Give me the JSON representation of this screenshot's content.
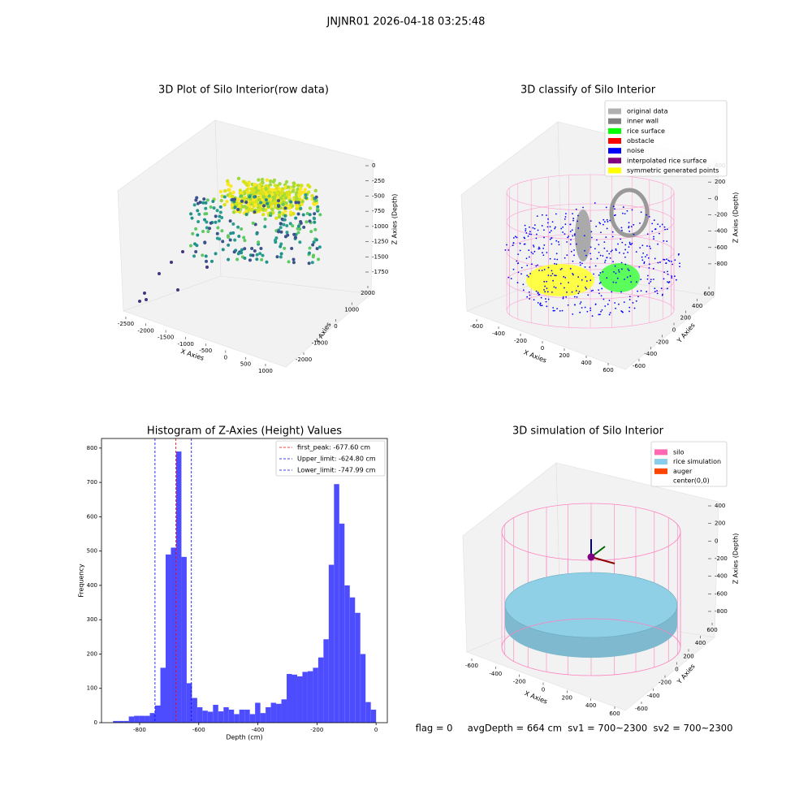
{
  "title": "JNJNR01 2026-04-18 03:25:48",
  "footer": "flag = 0     avgDepth = 664 cm  sv1 = 700~2300  sv2 = 700~2300",
  "chart_data": [
    {
      "type": "scatter3d",
      "title": "3D Plot of Silo Interior(row data)",
      "xlabel": "X Axies",
      "ylabel": "Y Axies",
      "zlabel": "Z Axies (Depth)",
      "xlim": [
        -2650,
        1100
      ],
      "xticks": [
        -2500,
        -2000,
        -1500,
        -1000,
        -500,
        0,
        500,
        1000
      ],
      "ylim": [
        -2300,
        2300
      ],
      "yticks": [
        -2000,
        -1000,
        0,
        1000,
        2000
      ],
      "zlim": [
        -1850,
        50
      ],
      "zticks": [
        0,
        -250,
        -500,
        -750,
        -1000,
        -1250,
        -1500,
        -1750
      ]
    },
    {
      "type": "scatter3d",
      "title": "3D classify of Silo Interior",
      "xlabel": "X Axies",
      "ylabel": "Y Axies",
      "zlabel": "Z Axies (Depth)",
      "xlim": [
        -700,
        700
      ],
      "xticks": [
        -600,
        -400,
        -200,
        0,
        200,
        400,
        600
      ],
      "ylim": [
        -700,
        700
      ],
      "yticks": [
        -600,
        -400,
        -200,
        0,
        200,
        400,
        600
      ],
      "zlim": [
        -900,
        450
      ],
      "zticks": [
        400,
        200,
        0,
        -200,
        -400,
        -600,
        -800
      ],
      "series": [
        {
          "name": "original data",
          "color": "#b0b0b0"
        },
        {
          "name": "inner wall",
          "color": "#808080"
        },
        {
          "name": "rice surface",
          "color": "#00ff00"
        },
        {
          "name": "obstacle",
          "color": "#ff0000"
        },
        {
          "name": "noise",
          "color": "#0000ff"
        },
        {
          "name": "interpolated rice surface",
          "color": "#800080"
        },
        {
          "name": "symmetric generated points",
          "color": "#ffff00"
        }
      ]
    },
    {
      "type": "histogram",
      "title": "Histogram of Z-Axies (Height) Values",
      "xlabel": "Depth (cm)",
      "ylabel": "Frequency",
      "color": "#4d4dff",
      "bins": [
        -890,
        -872.2,
        -854.4,
        -836.6,
        -818.8,
        -801,
        -783.2,
        -765.4,
        -747.6,
        -729.8,
        -712,
        -694.2,
        -676.4,
        -658.6,
        -640.8,
        -623,
        -605.2,
        -587.4,
        -569.6,
        -551.8,
        -534,
        -516.2,
        -498.4,
        -480.6,
        -462.8,
        -445,
        -427.2,
        -409.4,
        -391.6,
        -373.8,
        -356,
        -338.2,
        -320.4,
        -302.6,
        -284.8,
        -267,
        -249.2,
        -231.4,
        -213.6,
        -195.8,
        -178,
        -160.2,
        -142.4,
        -124.6,
        -106.8,
        -89,
        -71.2,
        -53.4,
        -35.6,
        -17.8,
        0
      ],
      "counts": [
        5,
        5,
        5,
        18,
        20,
        20,
        20,
        28,
        50,
        160,
        490,
        510,
        790,
        483,
        115,
        72,
        45,
        35,
        32,
        52,
        33,
        45,
        38,
        25,
        38,
        38,
        25,
        58,
        28,
        45,
        58,
        55,
        68,
        142,
        140,
        135,
        148,
        150,
        160,
        190,
        243,
        460,
        695,
        580,
        400,
        365,
        320,
        200,
        60,
        38
      ],
      "xlim": [
        -929,
        38
      ],
      "xticks": [
        -800,
        -600,
        -400,
        -200,
        0
      ],
      "ylim": [
        0,
        828
      ],
      "yticks": [
        0,
        100,
        200,
        300,
        400,
        500,
        600,
        700,
        800
      ],
      "legend": "upper right",
      "lines": [
        {
          "name": "first_peak: -677.60 cm",
          "value": -677.6,
          "color": "#ff0000"
        },
        {
          "name": "Upper_limit: -624.80 cm",
          "value": -624.8,
          "color": "#0000ff"
        },
        {
          "name": "Lower_limit: -747.99 cm",
          "value": -747.99,
          "color": "#0000ff"
        }
      ]
    },
    {
      "type": "scatter3d",
      "title": "3D simulation of Silo Interior",
      "xlabel": "X Axies",
      "ylabel": "Y Axies",
      "zlabel": "Z Axies (Depth)",
      "xlim": [
        -700,
        700
      ],
      "xticks": [
        -600,
        -400,
        -200,
        0,
        200,
        400,
        600
      ],
      "ylim": [
        -700,
        700
      ],
      "yticks": [
        -600,
        -400,
        -200,
        0,
        200,
        400,
        600
      ],
      "zlim": [
        -900,
        450
      ],
      "zticks": [
        400,
        200,
        0,
        -200,
        -400,
        -600,
        -800
      ],
      "series": [
        {
          "name": "silo",
          "color": "#ff69b4"
        },
        {
          "name": "rice simulation",
          "color": "#87ceeb"
        },
        {
          "name": "auger",
          "color": "#ff4500"
        },
        {
          "name": "center(0,0)",
          "color": "#ffffff"
        }
      ]
    }
  ]
}
